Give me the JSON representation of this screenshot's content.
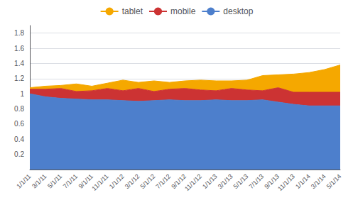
{
  "chart_data": {
    "type": "area",
    "stacked": true,
    "grid": true,
    "legend": "top",
    "categories": [
      "1/1/11",
      "3/1/11",
      "5/1/11",
      "7/1/11",
      "9/1/11",
      "11/1/11",
      "1/1/12",
      "3/1/12",
      "5/1/12",
      "7/1/12",
      "9/1/12",
      "11/1/12",
      "1/1/13",
      "3/1/13",
      "5/1/13",
      "7/1/13",
      "9/1/13",
      "11/1/13",
      "1/1/14",
      "3/1/14",
      "5/1/14"
    ],
    "series": [
      {
        "name": "desktop",
        "color": "#4D7FCC",
        "values": [
          1.0,
          0.96,
          0.94,
          0.93,
          0.92,
          0.92,
          0.91,
          0.9,
          0.91,
          0.92,
          0.91,
          0.91,
          0.92,
          0.91,
          0.91,
          0.92,
          0.89,
          0.86,
          0.84,
          0.84,
          0.84
        ]
      },
      {
        "name": "mobile",
        "color": "#CC3333",
        "values": [
          0.06,
          0.1,
          0.13,
          0.1,
          0.12,
          0.15,
          0.13,
          0.17,
          0.12,
          0.14,
          0.16,
          0.14,
          0.12,
          0.16,
          0.14,
          0.12,
          0.19,
          0.16,
          0.18,
          0.18,
          0.18
        ]
      },
      {
        "name": "tablet",
        "color": "#F5A800",
        "values": [
          0.02,
          0.04,
          0.04,
          0.1,
          0.06,
          0.07,
          0.14,
          0.08,
          0.14,
          0.09,
          0.1,
          0.13,
          0.13,
          0.1,
          0.13,
          0.2,
          0.17,
          0.24,
          0.26,
          0.3,
          0.36
        ]
      }
    ],
    "ylim": [
      0,
      1.9
    ],
    "yticks": [
      0.2,
      0.4,
      0.6,
      0.8,
      1,
      1.2,
      1.4,
      1.6,
      1.8
    ]
  }
}
